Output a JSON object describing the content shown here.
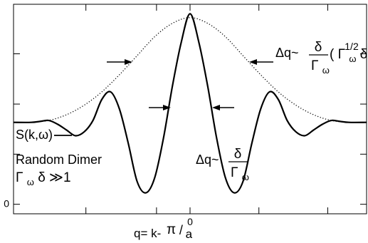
{
  "chart_data": {
    "type": "line",
    "title": "",
    "xlabel": "",
    "ylabel": "",
    "xlim": [
      -1,
      1
    ],
    "ylim": [
      -0.05,
      1.05
    ],
    "grid": false,
    "legend": "none",
    "x_ticks": [
      -0.59,
      -0.19,
      0.0,
      0.39,
      0.78
    ],
    "x_tick_labels": [
      "",
      "",
      "0",
      "",
      ""
    ],
    "y_ticks": [
      0.0,
      0.263,
      0.526,
      0.79
    ],
    "y_tick_labels": [
      "0",
      "",
      "",
      ""
    ],
    "x_axis_label": {
      "prefix": "q= k-",
      "numerator": "π",
      "slash": "/",
      "denominator": "a"
    },
    "series": [
      {
        "style": "solid",
        "x": [
          -1.0,
          -0.9,
          -0.85,
          -0.8,
          -0.75,
          -0.7,
          -0.65,
          -0.6,
          -0.55,
          -0.5,
          -0.45,
          -0.4,
          -0.35,
          -0.3,
          -0.25,
          -0.2,
          -0.15,
          -0.1,
          -0.05,
          0.0,
          0.05,
          0.1,
          0.15,
          0.2,
          0.25,
          0.3,
          0.35,
          0.4,
          0.45,
          0.5,
          0.55,
          0.6,
          0.65,
          0.7,
          0.75,
          0.8,
          0.85,
          0.9,
          1.0
        ],
        "y": [
          0.43,
          0.43,
          0.435,
          0.44,
          0.42,
          0.39,
          0.36,
          0.38,
          0.44,
          0.55,
          0.59,
          0.5,
          0.32,
          0.12,
          0.06,
          0.14,
          0.35,
          0.62,
          0.85,
          1.0,
          0.85,
          0.62,
          0.35,
          0.14,
          0.06,
          0.12,
          0.32,
          0.5,
          0.59,
          0.55,
          0.44,
          0.38,
          0.36,
          0.39,
          0.42,
          0.44,
          0.435,
          0.43,
          0.43
        ]
      },
      {
        "style": "dotted",
        "x": [
          -0.9,
          -0.8,
          -0.7,
          -0.6,
          -0.5,
          -0.4,
          -0.3,
          -0.2,
          -0.1,
          0.0,
          0.1,
          0.2,
          0.3,
          0.4,
          0.5,
          0.6,
          0.7,
          0.8,
          0.9
        ],
        "y": [
          0.43,
          0.44,
          0.47,
          0.52,
          0.59,
          0.68,
          0.78,
          0.88,
          0.95,
          0.98,
          0.95,
          0.88,
          0.78,
          0.68,
          0.59,
          0.52,
          0.47,
          0.44,
          0.43
        ]
      }
    ],
    "annotations": {
      "s_label": "S(k,ω)",
      "model_label": "Random Dimer",
      "condition": {
        "gamma": "Γ",
        "omega_sub": "ω",
        "delta": "δ",
        "relation": "≫1"
      },
      "inner_width": {
        "lhs": "Δq~",
        "numerator": "δ",
        "denominator": "Γ",
        "denominator_sub": "ω"
      },
      "outer_width": {
        "lhs": "Δq~",
        "numerator": "δ",
        "denominator": "Γ",
        "denominator_sub": "ω",
        "paren_open": "(",
        "gamma": "Γ",
        "omega_sub": "ω",
        "delta": "δ",
        "paren_close": ")",
        "exponent": "1/2"
      }
    }
  }
}
